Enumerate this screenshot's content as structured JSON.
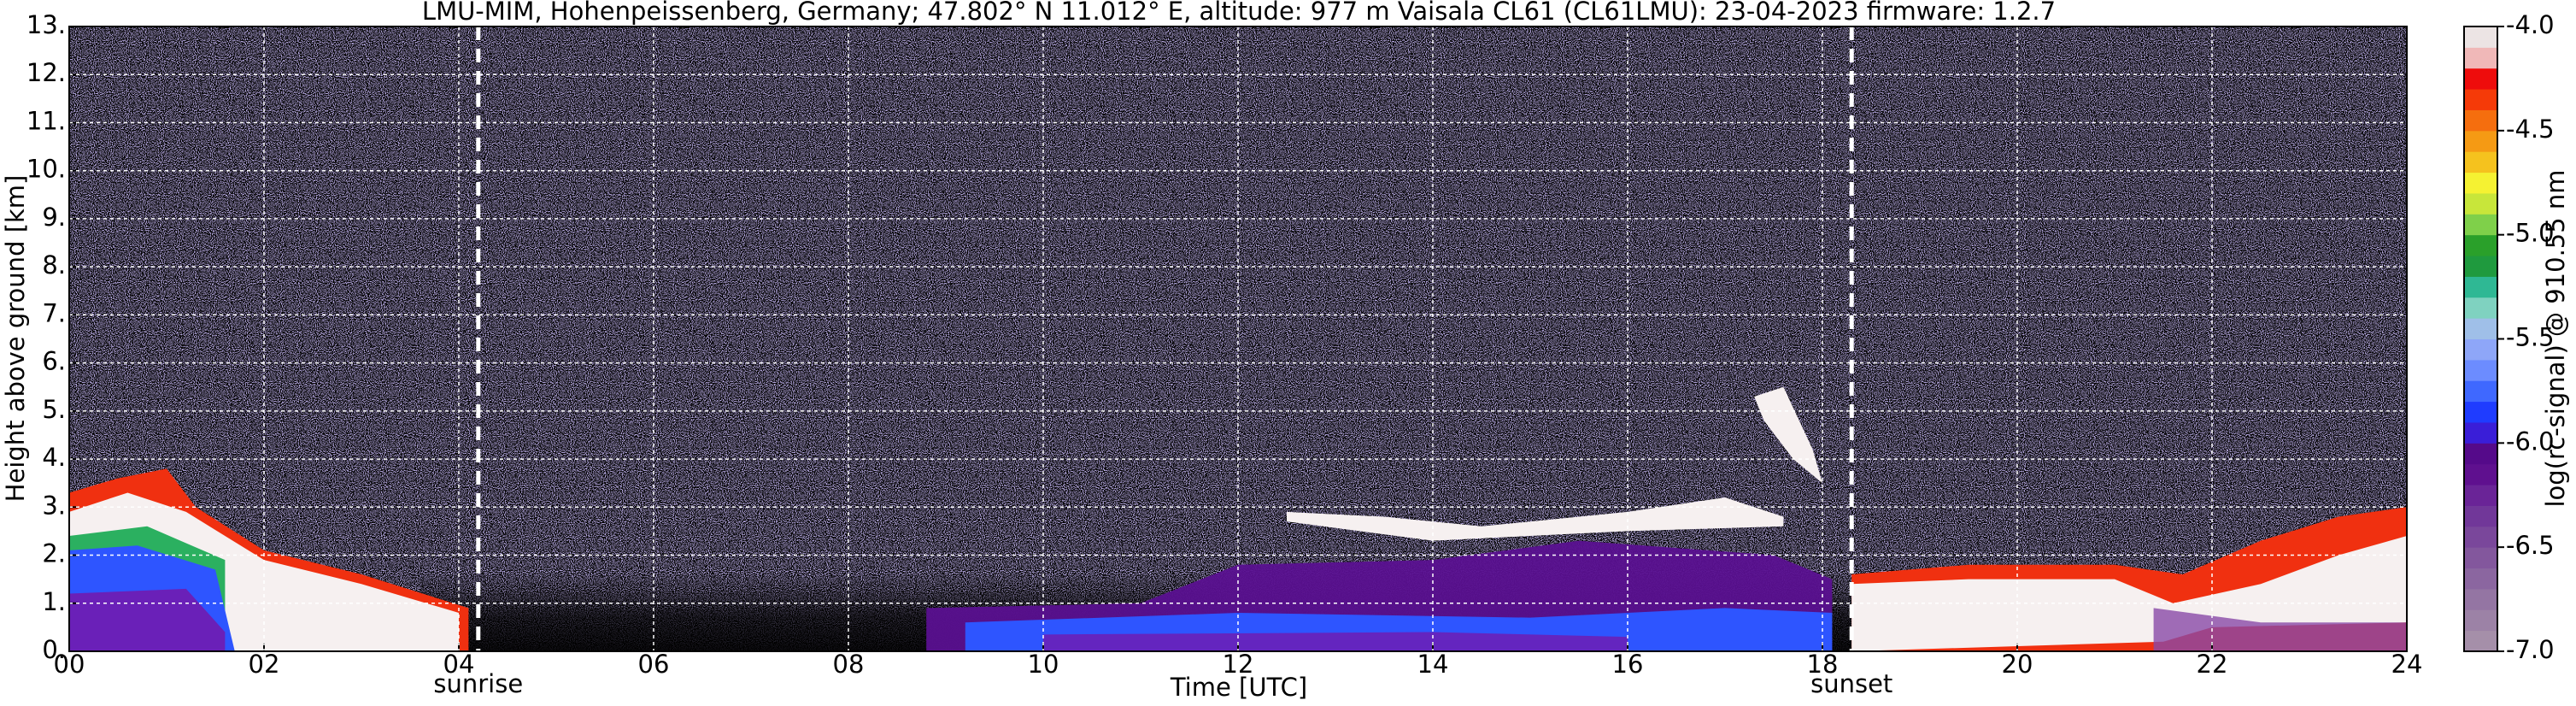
{
  "chart_data": {
    "type": "heatmap",
    "title": "LMU-MIM, Hohenpeissenberg, Germany; 47.802° N 11.012° E, altitude: 977 m    Vaisala CL61 (CL61LMU): 23-04-2023    firmware: 1.2.7",
    "x_label": "Time [UTC]",
    "y_label": "Height above ground [km]",
    "xlim": [
      0,
      24
    ],
    "xticks": [
      {
        "value": 0,
        "label": "00"
      },
      {
        "value": 2,
        "label": "02"
      },
      {
        "value": 4,
        "label": "04"
      },
      {
        "value": 6,
        "label": "06"
      },
      {
        "value": 8,
        "label": "08"
      },
      10,
      12,
      14,
      16,
      18,
      20,
      22,
      24
    ],
    "ylim": [
      0,
      13
    ],
    "yticks": [
      {
        "value": 0,
        "label": "0."
      },
      {
        "value": 1,
        "label": "1."
      },
      {
        "value": 2,
        "label": "2."
      },
      {
        "value": 3,
        "label": "3."
      },
      {
        "value": 4,
        "label": "4."
      },
      {
        "value": 5,
        "label": "5."
      },
      {
        "value": 6,
        "label": "6."
      },
      {
        "value": 7,
        "label": "7."
      },
      {
        "value": 8,
        "label": "8."
      },
      {
        "value": 9,
        "label": "9."
      },
      {
        "value": 10,
        "label": "10."
      },
      {
        "value": 11,
        "label": "11."
      },
      {
        "value": 12,
        "label": "12."
      },
      {
        "value": 13,
        "label": "13."
      }
    ],
    "grid": true,
    "annotations": [
      {
        "x": 4.2,
        "text": "sunrise"
      },
      {
        "x": 18.3,
        "text": "sunset"
      }
    ],
    "colorbar": {
      "label": "log(rc-signal) @ 910.55 nm",
      "lim": [
        -7.0,
        -4.0
      ],
      "ticks": [
        {
          "value": -7.0,
          "label": "-7.0"
        },
        {
          "value": -6.5,
          "label": "-6.5"
        },
        {
          "value": -6.0,
          "label": "-6.0"
        },
        {
          "value": -5.5,
          "label": "-5.5"
        },
        {
          "value": -5.0,
          "label": "-5.0"
        },
        {
          "value": -4.5,
          "label": "-4.5"
        },
        {
          "value": -4.0,
          "label": "-4.0"
        }
      ],
      "colors": [
        "#a58fa9",
        "#9c82a6",
        "#9475a3",
        "#8b66a0",
        "#83579d",
        "#7a479b",
        "#713799",
        "#6a2497",
        "#5f108f",
        "#550a8a",
        "#3a1ed8",
        "#1f3cff",
        "#3f68ff",
        "#6c8cff",
        "#8ea6f8",
        "#9fbfe8",
        "#7fd2c0",
        "#2fb894",
        "#1f9a3e",
        "#2aa02a",
        "#7fd04a",
        "#c8e63a",
        "#f5f232",
        "#f5c21e",
        "#f59a14",
        "#f56e0e",
        "#f53a08",
        "#ee0c0c",
        "#f0b8b8",
        "#ece4e4"
      ]
    }
  }
}
